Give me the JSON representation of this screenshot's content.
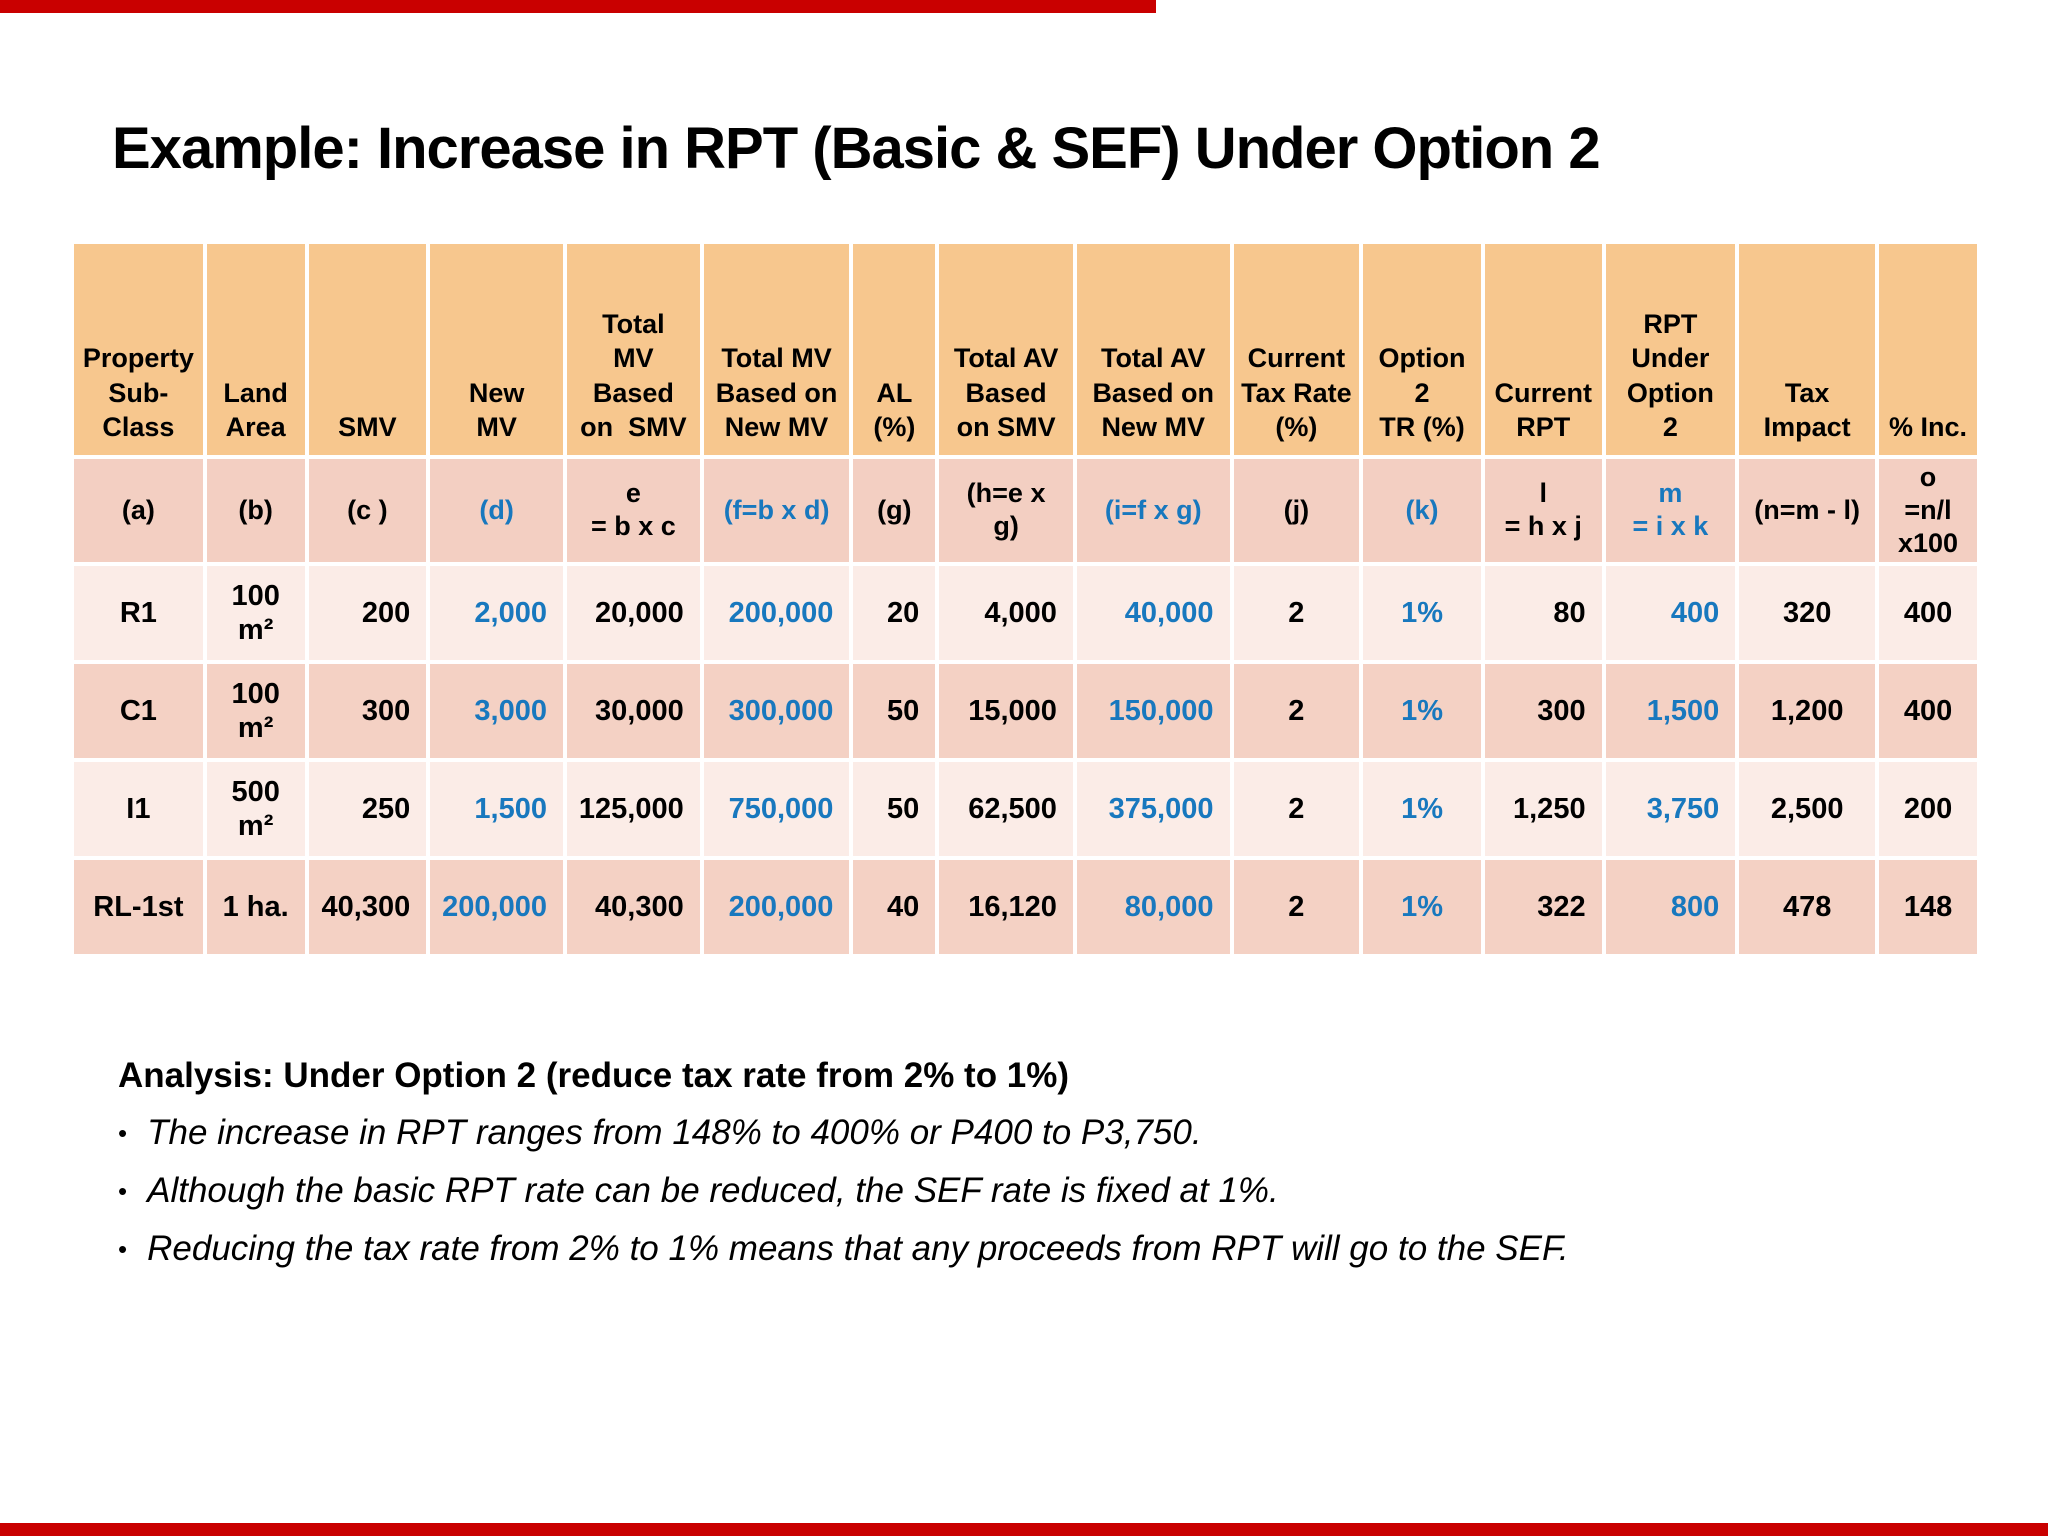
{
  "page": {
    "title": "Example: Increase in RPT (Basic & SEF) Under Option 2"
  },
  "colors": {
    "accent_red": "#C90000",
    "header_bg": "#F7C78E",
    "formula_row_bg": "#F3CFC2",
    "row_light_bg": "#FBECE7",
    "row_dark_bg": "#F4D1C4",
    "highlight_blue": "#1878BE",
    "text_black": "#141414"
  },
  "table": {
    "columns": [
      {
        "id": "a",
        "header": "Property\nSub-\nClass",
        "formula": "(a)",
        "align": "center",
        "highlight": false
      },
      {
        "id": "b",
        "header": "Land\nArea",
        "formula": "(b)",
        "align": "center",
        "highlight": false
      },
      {
        "id": "c",
        "header": "SMV",
        "formula": "(c )",
        "align": "right",
        "highlight": false
      },
      {
        "id": "d",
        "header": "New\nMV",
        "formula": "(d)",
        "align": "right",
        "highlight": true
      },
      {
        "id": "e",
        "header": "Total\nMV\nBased\non  SMV",
        "formula": "e\n= b x c",
        "align": "right",
        "highlight": false
      },
      {
        "id": "f",
        "header": "Total MV\nBased on\nNew MV",
        "formula": "(f=b x d)",
        "align": "right",
        "highlight": true
      },
      {
        "id": "g",
        "header": "AL\n(%)",
        "formula": "(g)",
        "align": "right",
        "highlight": false
      },
      {
        "id": "h",
        "header": "Total AV\nBased\non SMV",
        "formula": "(h=e x\ng)",
        "align": "right",
        "highlight": false
      },
      {
        "id": "i",
        "header": "Total AV\nBased on\nNew MV",
        "formula": "(i=f x g)",
        "align": "right",
        "highlight": true
      },
      {
        "id": "j",
        "header": "Current\nTax Rate\n(%)",
        "formula": "(j)",
        "align": "center",
        "highlight": false
      },
      {
        "id": "k",
        "header": "Option\n2\nTR (%)",
        "formula": "(k)",
        "align": "center",
        "highlight": true
      },
      {
        "id": "l",
        "header": "Current\nRPT",
        "formula": "l\n= h x j",
        "align": "right",
        "highlight": false
      },
      {
        "id": "m",
        "header": "RPT\nUnder\nOption\n2",
        "formula": "m\n= i x k",
        "align": "right",
        "highlight": true
      },
      {
        "id": "n",
        "header": "Tax\nImpact",
        "formula": "(n=m - l)",
        "align": "center",
        "highlight": false
      },
      {
        "id": "o",
        "header": "% Inc.",
        "formula": "o\n=n/l\nx100",
        "align": "center",
        "highlight": false
      }
    ],
    "rows": [
      {
        "shade": "light",
        "cells": [
          "R1",
          "100\nm²",
          "200",
          "2,000",
          "20,000",
          "200,000",
          "20",
          "4,000",
          "40,000",
          "2",
          "1%",
          "80",
          "400",
          "320",
          "400"
        ]
      },
      {
        "shade": "dark",
        "cells": [
          "C1",
          "100\nm²",
          "300",
          "3,000",
          "30,000",
          "300,000",
          "50",
          "15,000",
          "150,000",
          "2",
          "1%",
          "300",
          "1,500",
          "1,200",
          "400"
        ]
      },
      {
        "shade": "light",
        "cells": [
          "I1",
          "500\nm²",
          "250",
          "1,500",
          "125,000",
          "750,000",
          "50",
          "62,500",
          "375,000",
          "2",
          "1%",
          "1,250",
          "3,750",
          "2,500",
          "200"
        ]
      },
      {
        "shade": "dark",
        "cells": [
          "RL-1st",
          "1 ha.",
          "40,300",
          "200,000",
          "40,300",
          "200,000",
          "40",
          "16,120",
          "80,000",
          "2",
          "1%",
          "322",
          "800",
          "478",
          "148"
        ]
      }
    ]
  },
  "analysis": {
    "heading": "Analysis: Under Option 2 (reduce tax rate from 2% to 1%)",
    "bullet_glyph": "•",
    "bullets": [
      "The increase in RPT ranges from 148% to 400% or P400 to P3,750.",
      "Although the basic RPT rate can be reduced, the SEF rate is fixed at 1%.",
      "Reducing the tax rate from 2% to 1% means that any proceeds from RPT will go to the SEF."
    ]
  }
}
